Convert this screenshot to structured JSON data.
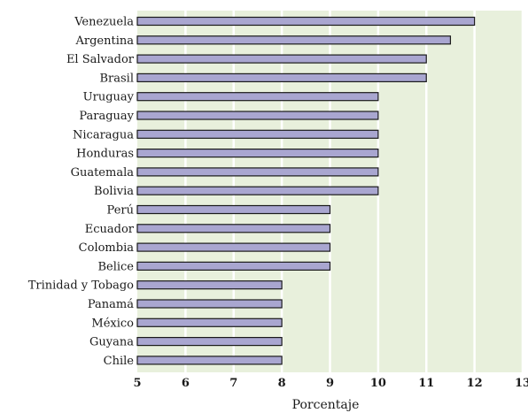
{
  "chart_data": {
    "type": "bar",
    "orientation": "horizontal",
    "categories": [
      "Venezuela",
      "Argentina",
      "El Salvador",
      "Brasil",
      "Uruguay",
      "Paraguay",
      "Nicaragua",
      "Honduras",
      "Guatemala",
      "Bolivia",
      "Perú",
      "Ecuador",
      "Colombia",
      "Belice",
      "Trinidad y Tobago",
      "Panamá",
      "México",
      "Guyana",
      "Chile"
    ],
    "values": [
      12,
      11.5,
      11,
      11,
      10,
      10,
      10,
      10,
      10,
      10,
      9,
      9,
      9,
      9,
      8,
      8,
      8,
      8,
      8
    ],
    "xlabel": "Porcentaje",
    "ylabel": "",
    "title": "",
    "xlim": [
      5,
      13
    ],
    "xticks": [
      "5",
      "6",
      "7",
      "8",
      "9",
      "10",
      "11",
      "12",
      "13"
    ],
    "grid": true,
    "colors": {
      "bar_fill": "#a9a6d0",
      "bar_stroke": "#1a1a1a",
      "plot_background": "#e8f0dc",
      "grid": "#ffffff"
    }
  }
}
